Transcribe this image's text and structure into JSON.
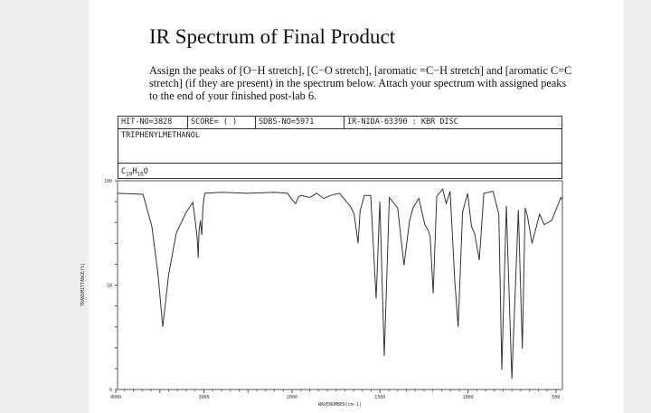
{
  "header": {
    "title": "IR Spectrum of Final Product",
    "instructions": "Assign the peaks of [O−H stretch], [C−O stretch], [aromatic =C−H stretch] and [aromatic C=C stretch] (if they are present) in the spectrum below. Attach your spectrum with assigned peaks to the end of your finished post-lab 6."
  },
  "spectrum_header": {
    "hit_no": "HIT-NO=3828",
    "score": "SCORE=  (    )",
    "sdbs_no": "SDBS-NO=5971",
    "source": "IR-NIDA-63390 : KBR DISC",
    "compound": "TRIPHENYLMETHANOL",
    "formula_c": "C",
    "formula_c_sub": "19",
    "formula_h": "H",
    "formula_h_sub": "16",
    "formula_o": "O"
  },
  "chart_data": {
    "type": "line",
    "title": "",
    "xlabel": "WAVENUMBER(cm-1)",
    "ylabel": "TRANSMITTANCE(%)",
    "xlim": [
      4000,
      460
    ],
    "ylim": [
      0,
      100
    ],
    "x_scale_note": "x-axis scale doubles below 2000",
    "x_ticks": [
      "4000",
      "3000",
      "2000",
      "1500",
      "1000",
      "500"
    ],
    "y_ticks": [
      "100",
      "50",
      "0"
    ],
    "grid": false,
    "line_color": "#333333",
    "points": [
      [
        3980,
        94
      ],
      [
        3690,
        93.5
      ],
      [
        3590,
        78
      ],
      [
        3520,
        55
      ],
      [
        3467,
        30
      ],
      [
        3400,
        55
      ],
      [
        3313,
        75
      ],
      [
        3200,
        85
      ],
      [
        3125,
        89.6
      ],
      [
        3090,
        78
      ],
      [
        3075,
        72
      ],
      [
        3065,
        63
      ],
      [
        3055,
        76
      ],
      [
        3040,
        81
      ],
      [
        3025,
        74
      ],
      [
        3010,
        88
      ],
      [
        2990,
        94
      ],
      [
        2800,
        94.5
      ],
      [
        2500,
        94
      ],
      [
        2200,
        94.5
      ],
      [
        2050,
        94
      ],
      [
        2000,
        91
      ],
      [
        1980,
        89
      ],
      [
        1965,
        92
      ],
      [
        1950,
        93
      ],
      [
        1900,
        92
      ],
      [
        1860,
        94
      ],
      [
        1820,
        91.5
      ],
      [
        1780,
        93
      ],
      [
        1730,
        94
      ],
      [
        1700,
        91
      ],
      [
        1670,
        88
      ],
      [
        1692,
        90
      ],
      [
        1647,
        84
      ],
      [
        1625,
        70
      ],
      [
        1613,
        85.6
      ],
      [
        1589,
        93
      ],
      [
        1553,
        93
      ],
      [
        1522,
        43.5
      ],
      [
        1501,
        90
      ],
      [
        1476,
        16
      ],
      [
        1447,
        92
      ],
      [
        1400,
        87
      ],
      [
        1364,
        59.5
      ],
      [
        1332,
        81
      ],
      [
        1312,
        87
      ],
      [
        1280,
        91.6
      ],
      [
        1245,
        79
      ],
      [
        1225,
        76
      ],
      [
        1215,
        73
      ],
      [
        1198,
        46
      ],
      [
        1178,
        92.5
      ],
      [
        1144,
        96
      ],
      [
        1124,
        89
      ],
      [
        1102,
        95
      ],
      [
        1075,
        52
      ],
      [
        1056,
        30
      ],
      [
        1031,
        85
      ],
      [
        1002,
        94
      ],
      [
        980,
        78
      ],
      [
        963,
        75
      ],
      [
        936,
        62
      ],
      [
        910,
        94
      ],
      [
        858,
        95
      ],
      [
        825,
        84
      ],
      [
        808,
        9.5
      ],
      [
        782,
        88
      ],
      [
        751,
        5
      ],
      [
        714,
        86
      ],
      [
        691,
        19.6
      ],
      [
        675,
        87
      ],
      [
        662,
        83
      ],
      [
        636,
        70
      ],
      [
        593,
        84
      ],
      [
        567,
        79
      ],
      [
        524,
        81
      ],
      [
        472,
        92
      ],
      [
        463,
        91
      ]
    ]
  }
}
